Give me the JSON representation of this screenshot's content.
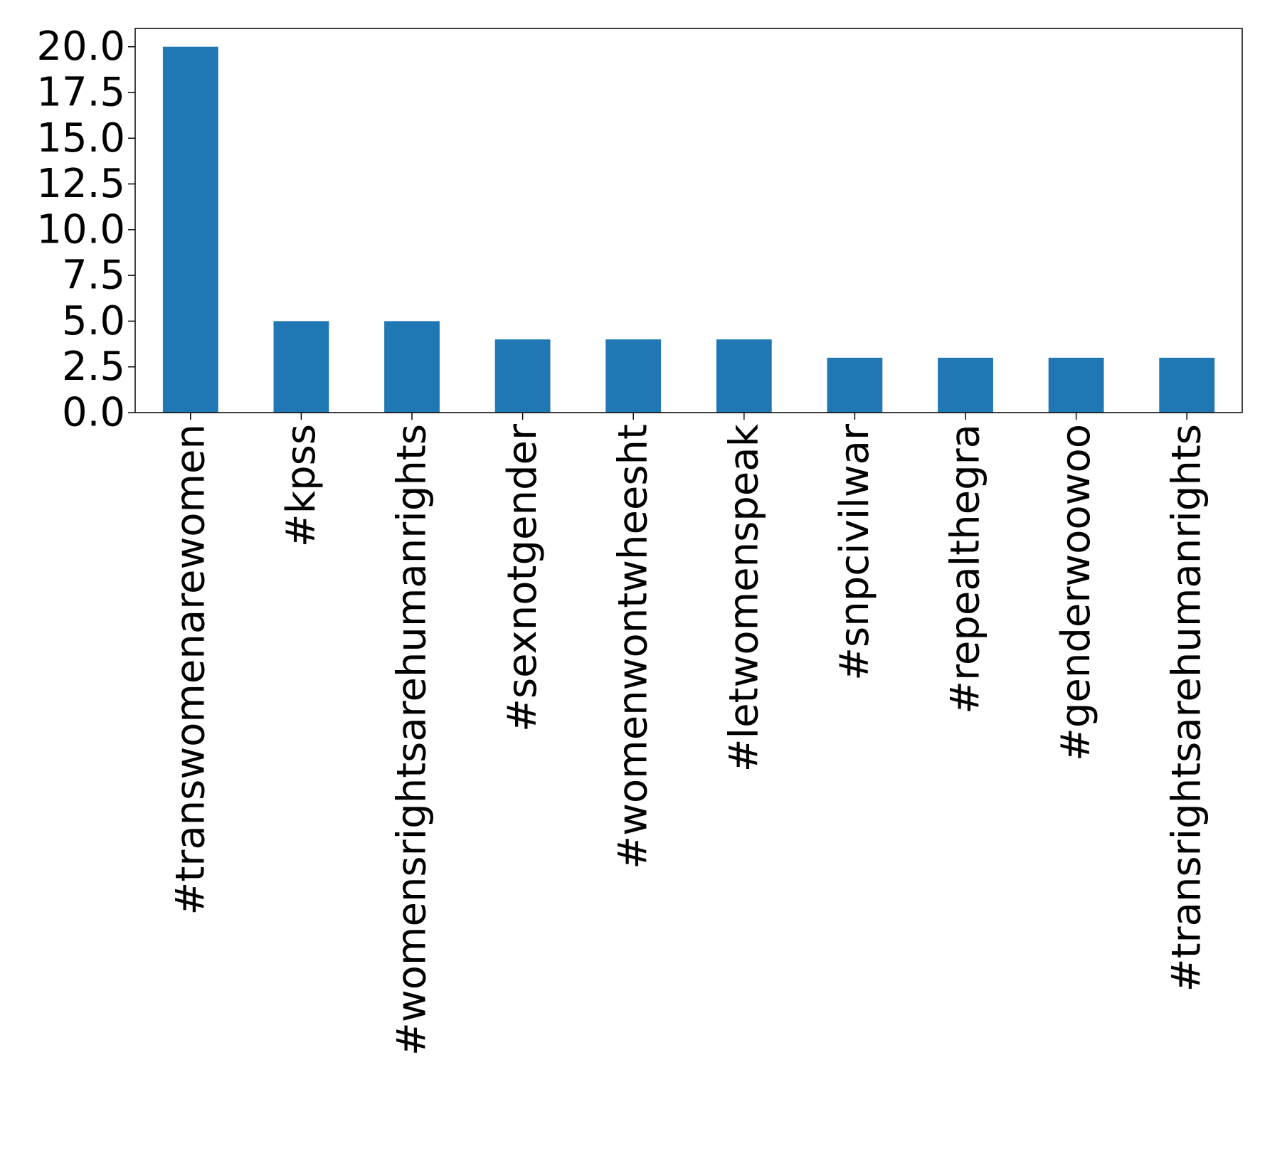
{
  "chart_data": {
    "type": "bar",
    "categories": [
      "#transwomenarewomen",
      "#kpss",
      "#womensrightsarehumanrights",
      "#sexnotgender",
      "#womenwontwheesht",
      "#letwomenspeak",
      "#snpcivilwar",
      "#repealthegra",
      "#genderwoowoo",
      "#transrightsarehumanrights"
    ],
    "values": [
      20,
      5,
      5,
      4,
      4,
      4,
      3,
      3,
      3,
      3
    ],
    "title": "",
    "xlabel": "",
    "ylabel": "",
    "ylim": [
      0,
      21
    ],
    "yticks": [
      "0.0",
      "2.5",
      "5.0",
      "7.5",
      "10.0",
      "12.5",
      "15.0",
      "17.5",
      "20.0"
    ],
    "bar_color": "#1f77b4",
    "grid": false,
    "legend": "none"
  }
}
